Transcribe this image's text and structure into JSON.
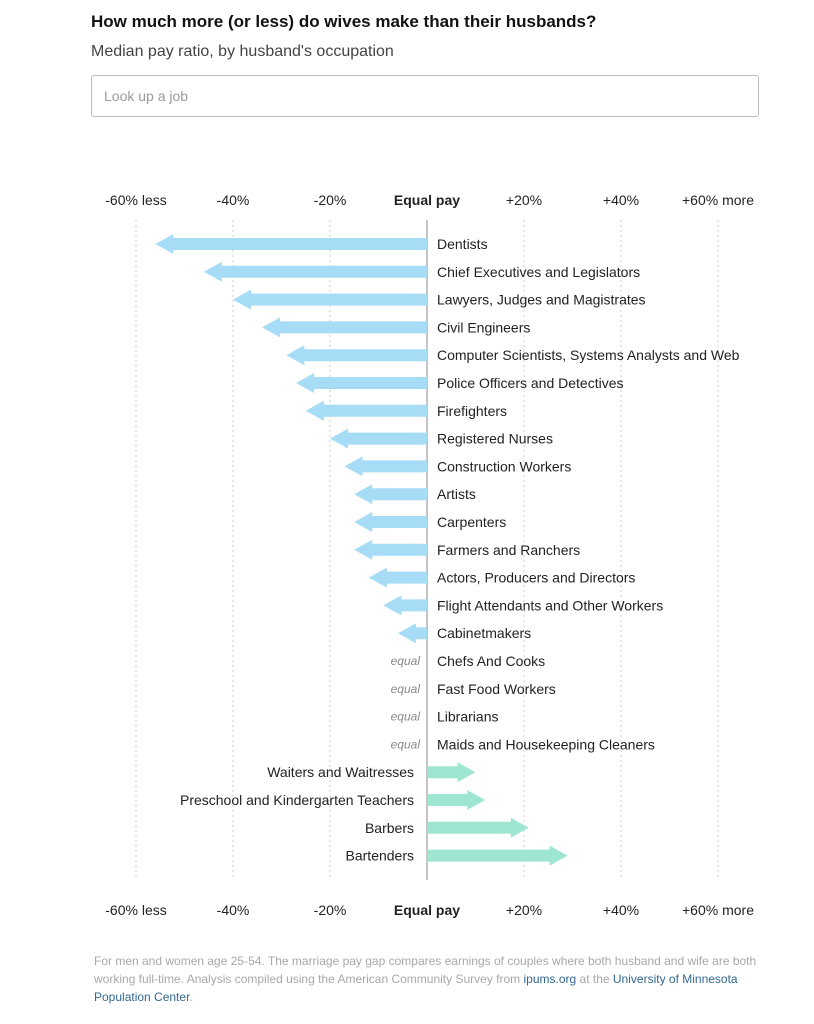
{
  "header": {
    "title": "How much more (or less) do wives make than their husbands?",
    "subtitle": "Median pay ratio, by husband's occupation"
  },
  "search": {
    "placeholder": "Look up a job"
  },
  "colors": {
    "negative": "#a6dcf5",
    "positive": "#9ee6d2",
    "grid": "#cccccc",
    "zero_line": "#888888"
  },
  "chart_data": {
    "type": "bar",
    "orientation": "horizontal-arrows",
    "title": "How much more (or less) do wives make than their husbands?",
    "subtitle": "Median pay ratio, by husband's occupation",
    "xlim": [
      -60,
      60
    ],
    "x_ticks": [
      {
        "value": -60,
        "label": "-60% less"
      },
      {
        "value": -40,
        "label": "-40%"
      },
      {
        "value": -20,
        "label": "-20%"
      },
      {
        "value": 0,
        "label": "Equal pay"
      },
      {
        "value": 20,
        "label": "+20%"
      },
      {
        "value": 40,
        "label": "+40%"
      },
      {
        "value": 60,
        "label": "+60% more"
      }
    ],
    "grid": true,
    "equal_label": "equal",
    "categories": [
      "Dentists",
      "Chief Executives and Legislators",
      "Lawyers, Judges and Magistrates",
      "Civil Engineers",
      "Computer Scientists, Systems Analysts and Web",
      "Police Officers and Detectives",
      "Firefighters",
      "Registered Nurses",
      "Construction Workers",
      "Artists",
      "Carpenters",
      "Farmers and Ranchers",
      "Actors, Producers and Directors",
      "Flight Attendants and Other Workers",
      "Cabinetmakers",
      "Chefs And Cooks",
      "Fast Food Workers",
      "Librarians",
      "Maids and Housekeeping Cleaners",
      "Waiters and Waitresses",
      "Preschool and Kindergarten Teachers",
      "Barbers",
      "Bartenders"
    ],
    "values": [
      -56,
      -46,
      -40,
      -34,
      -29,
      -27,
      -25,
      -20,
      -17,
      -15,
      -15,
      -15,
      -12,
      -9,
      -6,
      0,
      0,
      0,
      0,
      10,
      12,
      21,
      29
    ]
  },
  "footnote": {
    "text_before": "For men and women age 25-54. The marriage pay gap compares earnings of couples where both husband and wife are both working full-time. Analysis compiled using the American Community Survey from ",
    "link1": "ipums.org",
    "text_mid": " at the ",
    "link2": "University of Minnesota Population Center",
    "text_after": "."
  }
}
